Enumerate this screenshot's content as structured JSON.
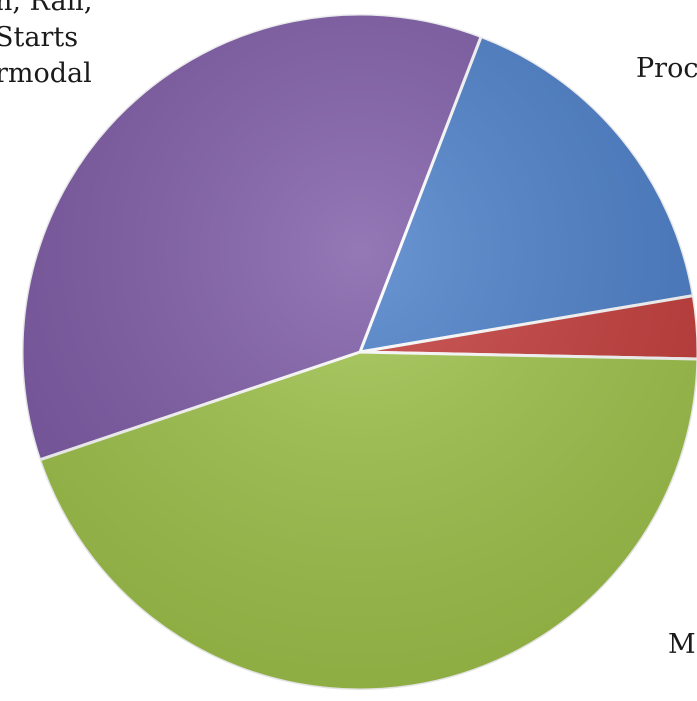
{
  "chart_data": {
    "type": "pie",
    "title": "",
    "slices": [
      {
        "label": "Proc",
        "value": 16.5,
        "color": "#4a7ec9"
      },
      {
        "label": "",
        "value": 3.0,
        "color": "#c43c3a"
      },
      {
        "label": "M",
        "value": 44.5,
        "color": "#9fc34a"
      },
      {
        "label": "n, Rail, Starts rmodal",
        "value": 36.0,
        "color": "#7d5aa6"
      }
    ],
    "label_lines": {
      "purple": [
        "n, Rail,",
        "Starts",
        "rmodal"
      ],
      "blue": [
        "Proc"
      ],
      "green": [
        "M"
      ]
    }
  }
}
